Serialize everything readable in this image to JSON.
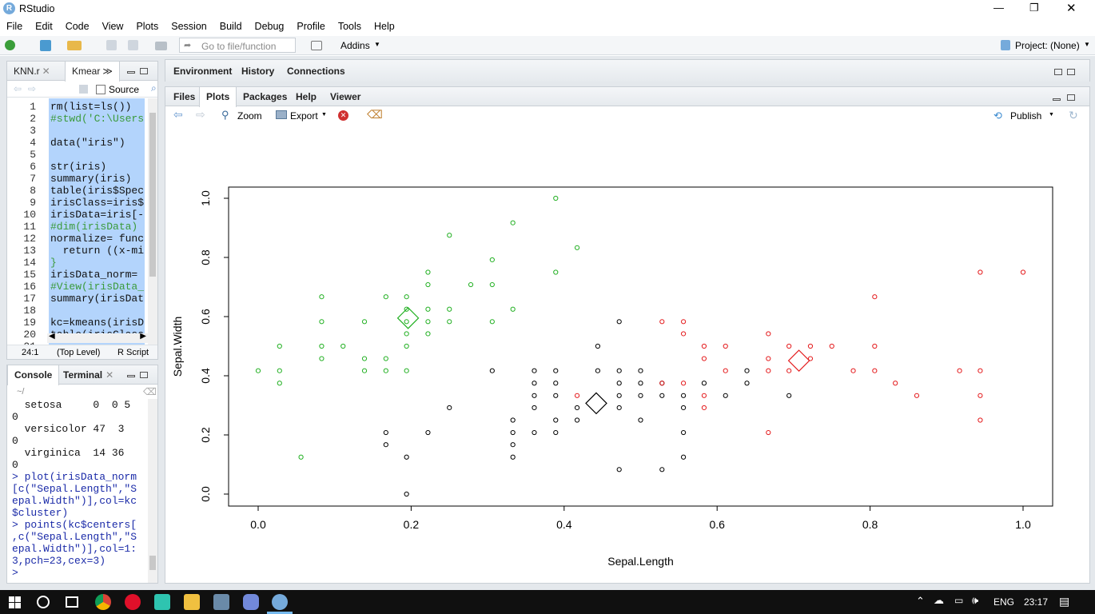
{
  "window": {
    "title": "RStudio",
    "controls": [
      "—",
      "❐",
      "✕"
    ]
  },
  "menu": [
    "File",
    "Edit",
    "Code",
    "View",
    "Plots",
    "Session",
    "Build",
    "Debug",
    "Profile",
    "Tools",
    "Help"
  ],
  "toolbar": {
    "goto_placeholder": "Go to file/function",
    "addins": "Addins",
    "project": "Project: (None)"
  },
  "editor": {
    "tabs": [
      "KNN.r",
      "Kmear"
    ],
    "source_label": "Source",
    "lines": [
      {
        "n": "1",
        "code": "rm(list=ls())"
      },
      {
        "n": "2",
        "code": "#stwd('C:\\Users"
      },
      {
        "n": "3",
        "code": ""
      },
      {
        "n": "4",
        "code": "data(\"iris\")"
      },
      {
        "n": "5",
        "code": ""
      },
      {
        "n": "6",
        "code": "str(iris)"
      },
      {
        "n": "7",
        "code": "summary(iris)"
      },
      {
        "n": "8",
        "code": "table(iris$Spec"
      },
      {
        "n": "9",
        "code": "irisClass=iris$"
      },
      {
        "n": "10",
        "code": "irisData=iris[-"
      },
      {
        "n": "11",
        "code": "#dim(irisData)"
      },
      {
        "n": "12",
        "code": "normalize= func"
      },
      {
        "n": "13",
        "code": "  return ((x-mi"
      },
      {
        "n": "14",
        "code": "}"
      },
      {
        "n": "15",
        "code": "irisData_norm="
      },
      {
        "n": "16",
        "code": "#View(irisData_"
      },
      {
        "n": "17",
        "code": "summary(irisDat"
      },
      {
        "n": "18",
        "code": ""
      },
      {
        "n": "19",
        "code": "kc=kmeans(irisD"
      },
      {
        "n": "20",
        "code": "table(irisClass"
      },
      {
        "n": "21",
        "code": ""
      }
    ],
    "status_pos": "24:1",
    "status_level": "(Top Level)",
    "status_type": "R Script"
  },
  "console": {
    "tabs": [
      "Console",
      "Terminal"
    ],
    "path": "~/",
    "lines": [
      "  setosa     0  0 5",
      "0",
      "  versicolor 47  3",
      "0",
      "  virginica  14 36",
      "0",
      "> plot(irisData_norm",
      "[c(\"Sepal.Length\",\"S",
      "epal.Width\")],col=kc",
      "$cluster)",
      "> points(kc$centers[",
      ",c(\"Sepal.Length\",\"S",
      "epal.Width\")],col=1:",
      "3,pch=23,cex=3)",
      "> "
    ]
  },
  "env_tabs": [
    "Environment",
    "History",
    "Connections"
  ],
  "files_tabs": [
    "Files",
    "Plots",
    "Packages",
    "Help",
    "Viewer"
  ],
  "plot_toolbar": {
    "zoom": "Zoom",
    "export": "Export",
    "publish": "Publish"
  },
  "chart_data": {
    "type": "scatter",
    "xlabel": "Sepal.Length",
    "ylabel": "Sepal.Width",
    "xlim": [
      0,
      1
    ],
    "ylim": [
      0,
      1
    ],
    "xticks": [
      "0.0",
      "0.2",
      "0.4",
      "0.6",
      "0.8",
      "1.0"
    ],
    "yticks": [
      "0.0",
      "0.2",
      "0.4",
      "0.6",
      "0.8",
      "1.0"
    ],
    "grid": false,
    "colors": {
      "1": "#000000",
      "2": "#e41a1c",
      "3": "#22b022"
    },
    "series": [
      {
        "cluster": 3,
        "points": [
          [
            0.0,
            0.417
          ],
          [
            0.028,
            0.5
          ],
          [
            0.028,
            0.417
          ],
          [
            0.028,
            0.375
          ],
          [
            0.056,
            0.125
          ],
          [
            0.083,
            0.667
          ],
          [
            0.083,
            0.583
          ],
          [
            0.083,
            0.5
          ],
          [
            0.083,
            0.458
          ],
          [
            0.111,
            0.5
          ],
          [
            0.139,
            0.583
          ],
          [
            0.139,
            0.458
          ],
          [
            0.139,
            0.417
          ],
          [
            0.167,
            0.667
          ],
          [
            0.167,
            0.458
          ],
          [
            0.167,
            0.417
          ],
          [
            0.194,
            0.667
          ],
          [
            0.194,
            0.625
          ],
          [
            0.194,
            0.583
          ],
          [
            0.194,
            0.542
          ],
          [
            0.194,
            0.5
          ],
          [
            0.194,
            0.417
          ],
          [
            0.222,
            0.75
          ],
          [
            0.222,
            0.708
          ],
          [
            0.222,
            0.625
          ],
          [
            0.222,
            0.583
          ],
          [
            0.222,
            0.542
          ],
          [
            0.25,
            0.875
          ],
          [
            0.25,
            0.625
          ],
          [
            0.25,
            0.583
          ],
          [
            0.278,
            0.708
          ],
          [
            0.306,
            0.792
          ],
          [
            0.306,
            0.708
          ],
          [
            0.306,
            0.583
          ],
          [
            0.333,
            0.917
          ],
          [
            0.333,
            0.625
          ],
          [
            0.389,
            1.0
          ],
          [
            0.389,
            0.75
          ],
          [
            0.417,
            0.833
          ]
        ]
      },
      {
        "cluster": 1,
        "points": [
          [
            0.167,
            0.208
          ],
          [
            0.167,
            0.167
          ],
          [
            0.194,
            0.125
          ],
          [
            0.194,
            0.0
          ],
          [
            0.222,
            0.208
          ],
          [
            0.25,
            0.292
          ],
          [
            0.306,
            0.417
          ],
          [
            0.333,
            0.25
          ],
          [
            0.333,
            0.208
          ],
          [
            0.333,
            0.167
          ],
          [
            0.333,
            0.125
          ],
          [
            0.361,
            0.417
          ],
          [
            0.361,
            0.375
          ],
          [
            0.361,
            0.333
          ],
          [
            0.361,
            0.292
          ],
          [
            0.361,
            0.208
          ],
          [
            0.389,
            0.417
          ],
          [
            0.389,
            0.375
          ],
          [
            0.389,
            0.333
          ],
          [
            0.389,
            0.25
          ],
          [
            0.389,
            0.208
          ],
          [
            0.417,
            0.292
          ],
          [
            0.417,
            0.25
          ],
          [
            0.444,
            0.5
          ],
          [
            0.444,
            0.417
          ],
          [
            0.472,
            0.583
          ],
          [
            0.472,
            0.417
          ],
          [
            0.472,
            0.375
          ],
          [
            0.472,
            0.333
          ],
          [
            0.472,
            0.292
          ],
          [
            0.472,
            0.083
          ],
          [
            0.5,
            0.417
          ],
          [
            0.5,
            0.375
          ],
          [
            0.5,
            0.333
          ],
          [
            0.5,
            0.25
          ],
          [
            0.528,
            0.375
          ],
          [
            0.528,
            0.333
          ],
          [
            0.528,
            0.083
          ],
          [
            0.556,
            0.333
          ],
          [
            0.556,
            0.292
          ],
          [
            0.556,
            0.208
          ],
          [
            0.556,
            0.125
          ],
          [
            0.583,
            0.375
          ],
          [
            0.611,
            0.333
          ],
          [
            0.639,
            0.417
          ],
          [
            0.639,
            0.375
          ],
          [
            0.694,
            0.333
          ]
        ]
      },
      {
        "cluster": 2,
        "points": [
          [
            0.417,
            0.333
          ],
          [
            0.528,
            0.583
          ],
          [
            0.528,
            0.375
          ],
          [
            0.556,
            0.583
          ],
          [
            0.556,
            0.542
          ],
          [
            0.556,
            0.375
          ],
          [
            0.583,
            0.5
          ],
          [
            0.583,
            0.458
          ],
          [
            0.583,
            0.333
          ],
          [
            0.583,
            0.292
          ],
          [
            0.611,
            0.5
          ],
          [
            0.611,
            0.417
          ],
          [
            0.667,
            0.542
          ],
          [
            0.667,
            0.458
          ],
          [
            0.667,
            0.417
          ],
          [
            0.667,
            0.208
          ],
          [
            0.694,
            0.5
          ],
          [
            0.694,
            0.417
          ],
          [
            0.722,
            0.5
          ],
          [
            0.722,
            0.458
          ],
          [
            0.75,
            0.5
          ],
          [
            0.778,
            0.417
          ],
          [
            0.806,
            0.667
          ],
          [
            0.806,
            0.5
          ],
          [
            0.806,
            0.417
          ],
          [
            0.833,
            0.375
          ],
          [
            0.861,
            0.333
          ],
          [
            0.917,
            0.417
          ],
          [
            0.944,
            0.75
          ],
          [
            0.944,
            0.417
          ],
          [
            0.944,
            0.333
          ],
          [
            0.944,
            0.25
          ],
          [
            1.0,
            0.75
          ]
        ]
      }
    ],
    "centers": [
      {
        "cluster": 1,
        "x": 0.442,
        "y": 0.307
      },
      {
        "cluster": 2,
        "x": 0.707,
        "y": 0.451
      },
      {
        "cluster": 3,
        "x": 0.196,
        "y": 0.595
      }
    ]
  },
  "taskbar": {
    "lang": "ENG",
    "time": "23:17"
  }
}
